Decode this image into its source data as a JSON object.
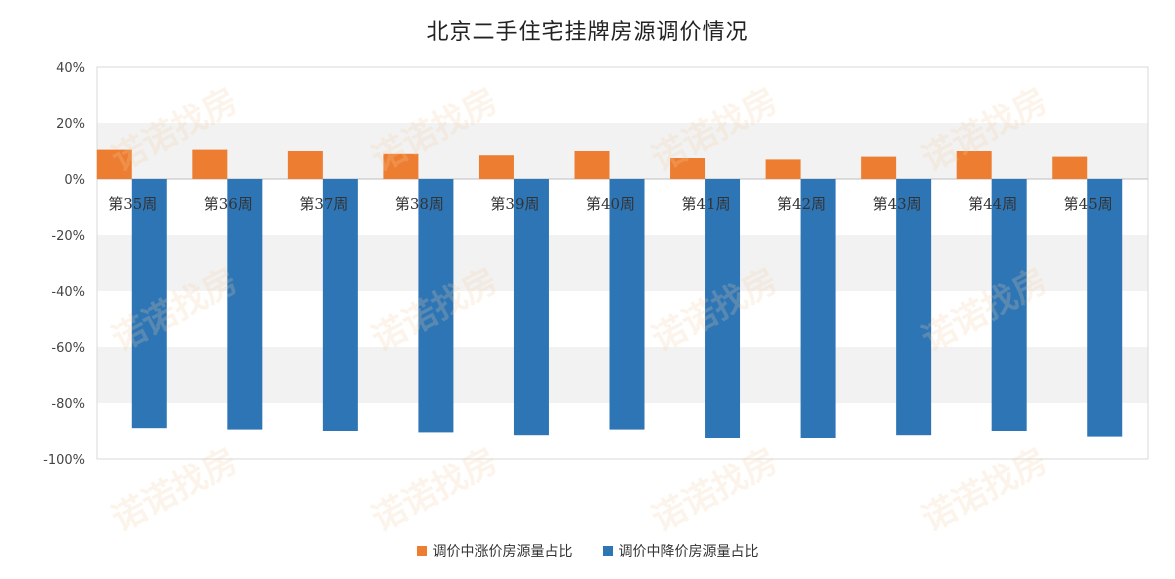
{
  "chart_data": {
    "type": "bar",
    "title": "北京二手住宅挂牌房源调价情况",
    "categories": [
      "第35周",
      "第36周",
      "第37周",
      "第38周",
      "第39周",
      "第40周",
      "第41周",
      "第42周",
      "第43周",
      "第44周",
      "第45周"
    ],
    "series": [
      {
        "name": "调价中涨价房源量占比",
        "color": "#ed7d31",
        "values": [
          10.5,
          10.5,
          10,
          9,
          8.5,
          10,
          7.5,
          7,
          8,
          10,
          8
        ]
      },
      {
        "name": "调价中降价房源量占比",
        "color": "#2e75b6",
        "values": [
          -89,
          -89.5,
          -90,
          -90.5,
          -91.5,
          -89.5,
          -92.5,
          -92.5,
          -91.5,
          -90,
          -92
        ]
      }
    ],
    "ylim": [
      -100,
      40
    ],
    "yticks": [
      40,
      20,
      0,
      -20,
      -40,
      -60,
      -80,
      -100
    ],
    "ytick_labels": [
      "40%",
      "20%",
      "0%",
      "-20%",
      "-40%",
      "-60%",
      "-80%",
      "-100%"
    ],
    "grid": "alternating horizontal bands",
    "legend_position": "bottom"
  },
  "watermark": "诺诺找房"
}
